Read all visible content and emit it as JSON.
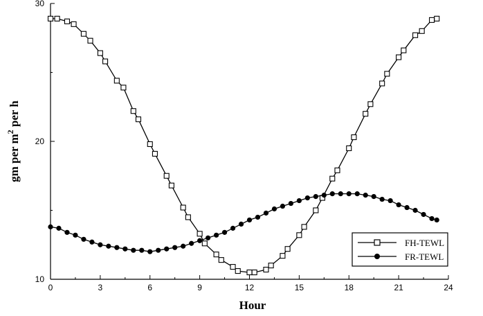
{
  "chart_data": {
    "type": "line",
    "title": "",
    "xlabel": "Hour",
    "ylabel": "gm per m 2 per h",
    "ylabel_parts": {
      "before": "gm per m",
      "superscript": "2",
      "after": " per h"
    },
    "xlim": [
      0,
      24
    ],
    "ylim": [
      10,
      30
    ],
    "x_ticks": [
      0,
      3,
      6,
      9,
      12,
      15,
      18,
      21,
      24
    ],
    "y_ticks": [
      10,
      20,
      30
    ],
    "grid": false,
    "legend_position": "bottom-right",
    "series": [
      {
        "name": "FH-TEWL",
        "marker": "open-square",
        "color": "#000000",
        "x": [
          0,
          0.4,
          1,
          1.4,
          2,
          2.4,
          3,
          3.3,
          4,
          4.4,
          5,
          5.3,
          6,
          6.3,
          7,
          7.3,
          8,
          8.3,
          9,
          9.3,
          10,
          10.3,
          11,
          11.3,
          12,
          12.3,
          13,
          13.3,
          14,
          14.3,
          15,
          15.3,
          16,
          16.4,
          17,
          17.3,
          18,
          18.3,
          19,
          19.3,
          20,
          20.3,
          21,
          21.3,
          22,
          22.4,
          23,
          23.3
        ],
        "y": [
          28.9,
          28.9,
          28.7,
          28.5,
          27.8,
          27.3,
          26.4,
          25.8,
          24.4,
          23.9,
          22.2,
          21.6,
          19.8,
          19.1,
          17.5,
          16.8,
          15.2,
          14.5,
          13.3,
          12.6,
          11.8,
          11.4,
          10.9,
          10.6,
          10.5,
          10.5,
          10.7,
          11.0,
          11.7,
          12.2,
          13.2,
          13.8,
          15.0,
          15.9,
          17.3,
          17.9,
          19.5,
          20.3,
          22.0,
          22.7,
          24.2,
          24.9,
          26.1,
          26.6,
          27.7,
          28.0,
          28.8,
          28.9
        ]
      },
      {
        "name": "FR-TEWL",
        "marker": "filled-circle",
        "color": "#000000",
        "x": [
          0,
          0.5,
          1,
          1.5,
          2,
          2.5,
          3,
          3.5,
          4,
          4.5,
          5,
          5.5,
          6,
          6.5,
          7,
          7.5,
          8,
          8.5,
          9,
          9.5,
          10,
          10.5,
          11,
          11.5,
          12,
          12.5,
          13,
          13.5,
          14,
          14.5,
          15,
          15.5,
          16,
          16.5,
          17,
          17.5,
          18,
          18.5,
          19,
          19.5,
          20,
          20.5,
          21,
          21.5,
          22,
          22.5,
          23,
          23.3
        ],
        "y": [
          13.8,
          13.7,
          13.4,
          13.2,
          12.9,
          12.7,
          12.5,
          12.4,
          12.3,
          12.2,
          12.1,
          12.1,
          12.0,
          12.1,
          12.2,
          12.3,
          12.4,
          12.6,
          12.8,
          13.0,
          13.2,
          13.4,
          13.7,
          14.0,
          14.3,
          14.5,
          14.8,
          15.1,
          15.3,
          15.5,
          15.7,
          15.9,
          16.0,
          16.1,
          16.2,
          16.2,
          16.2,
          16.2,
          16.1,
          16.0,
          15.8,
          15.7,
          15.4,
          15.2,
          15.0,
          14.7,
          14.4,
          14.3
        ]
      }
    ]
  }
}
